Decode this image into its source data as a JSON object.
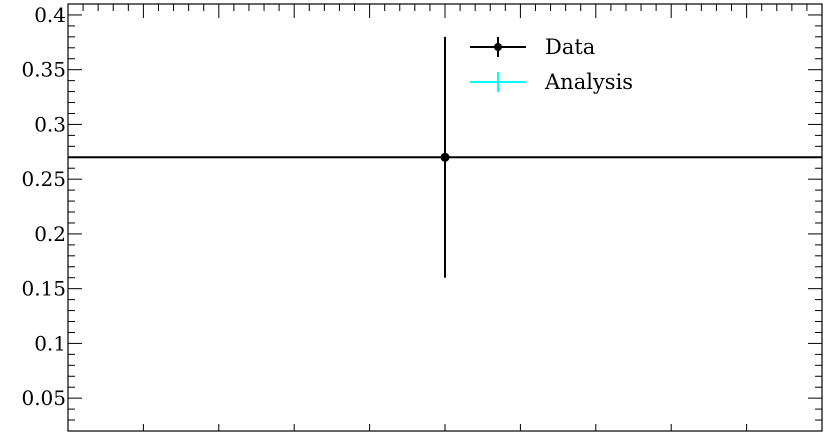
{
  "chart_data": {
    "type": "scatter",
    "title": "",
    "xlabel": "",
    "ylabel": "",
    "ylim": [
      0.02,
      0.41
    ],
    "yticks": [
      {
        "value": 0.05,
        "label": "0.05"
      },
      {
        "value": 0.1,
        "label": "0.1"
      },
      {
        "value": 0.15,
        "label": "0.15"
      },
      {
        "value": 0.2,
        "label": "0.2"
      },
      {
        "value": 0.25,
        "label": "0.25"
      },
      {
        "value": 0.3,
        "label": "0.3"
      },
      {
        "value": 0.35,
        "label": "0.35"
      },
      {
        "value": 0.4,
        "label": "0.4"
      }
    ],
    "series": [
      {
        "name": "Data",
        "color": "#000000",
        "points": [
          {
            "x": 0.5,
            "y": 0.27,
            "yerr_low": 0.16,
            "yerr_high": 0.38,
            "x_low": 0.0,
            "x_high": 1.0
          }
        ]
      },
      {
        "name": "Analysis",
        "color": "#00ffff",
        "points": []
      }
    ],
    "legend": {
      "position": "top-right"
    },
    "grid": false
  }
}
